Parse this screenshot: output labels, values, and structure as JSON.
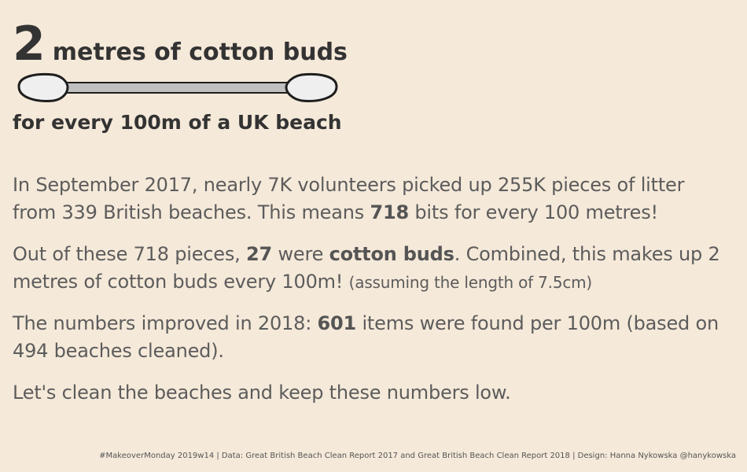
{
  "headline": {
    "number": "2",
    "text": "metres of cotton buds"
  },
  "subheadline": "for every 100m of a UK beach",
  "icon": "cotton-bud-icon",
  "paragraphs": {
    "p1": {
      "text_a": "In September 2017, nearly 7K volunteers picked up 255K pieces of litter from 339 British beaches. This means ",
      "bold_a": "718",
      "text_b": " bits for every 100 metres!"
    },
    "p2": {
      "text_a": "Out of these 718 pieces, ",
      "bold_a": "27",
      "text_b": " were ",
      "bold_b": "cotton buds",
      "text_c": ". Combined, this makes up 2 metres of cotton buds every 100m! ",
      "note": "(assuming the length of 7.5cm)"
    },
    "p3": {
      "text_a": "The numbers improved in 2018: ",
      "bold_a": "601",
      "text_b": " items were found per 100m (based on 494 beaches cleaned)."
    },
    "p4": {
      "text_a": "Let's clean the beaches and keep these numbers low."
    }
  },
  "footer": "#MakeoverMonday 2019w14 | Data: Great British Beach Clean Report 2017 and Great British Beach Clean Report 2018 | Design: Hanna Nykowska @hanykowska",
  "colors": {
    "background": "#f5e9d9",
    "heading": "#333333",
    "body": "#5c5c5c",
    "bud_stick": "#c0c0c0",
    "bud_tip": "#efefef"
  }
}
